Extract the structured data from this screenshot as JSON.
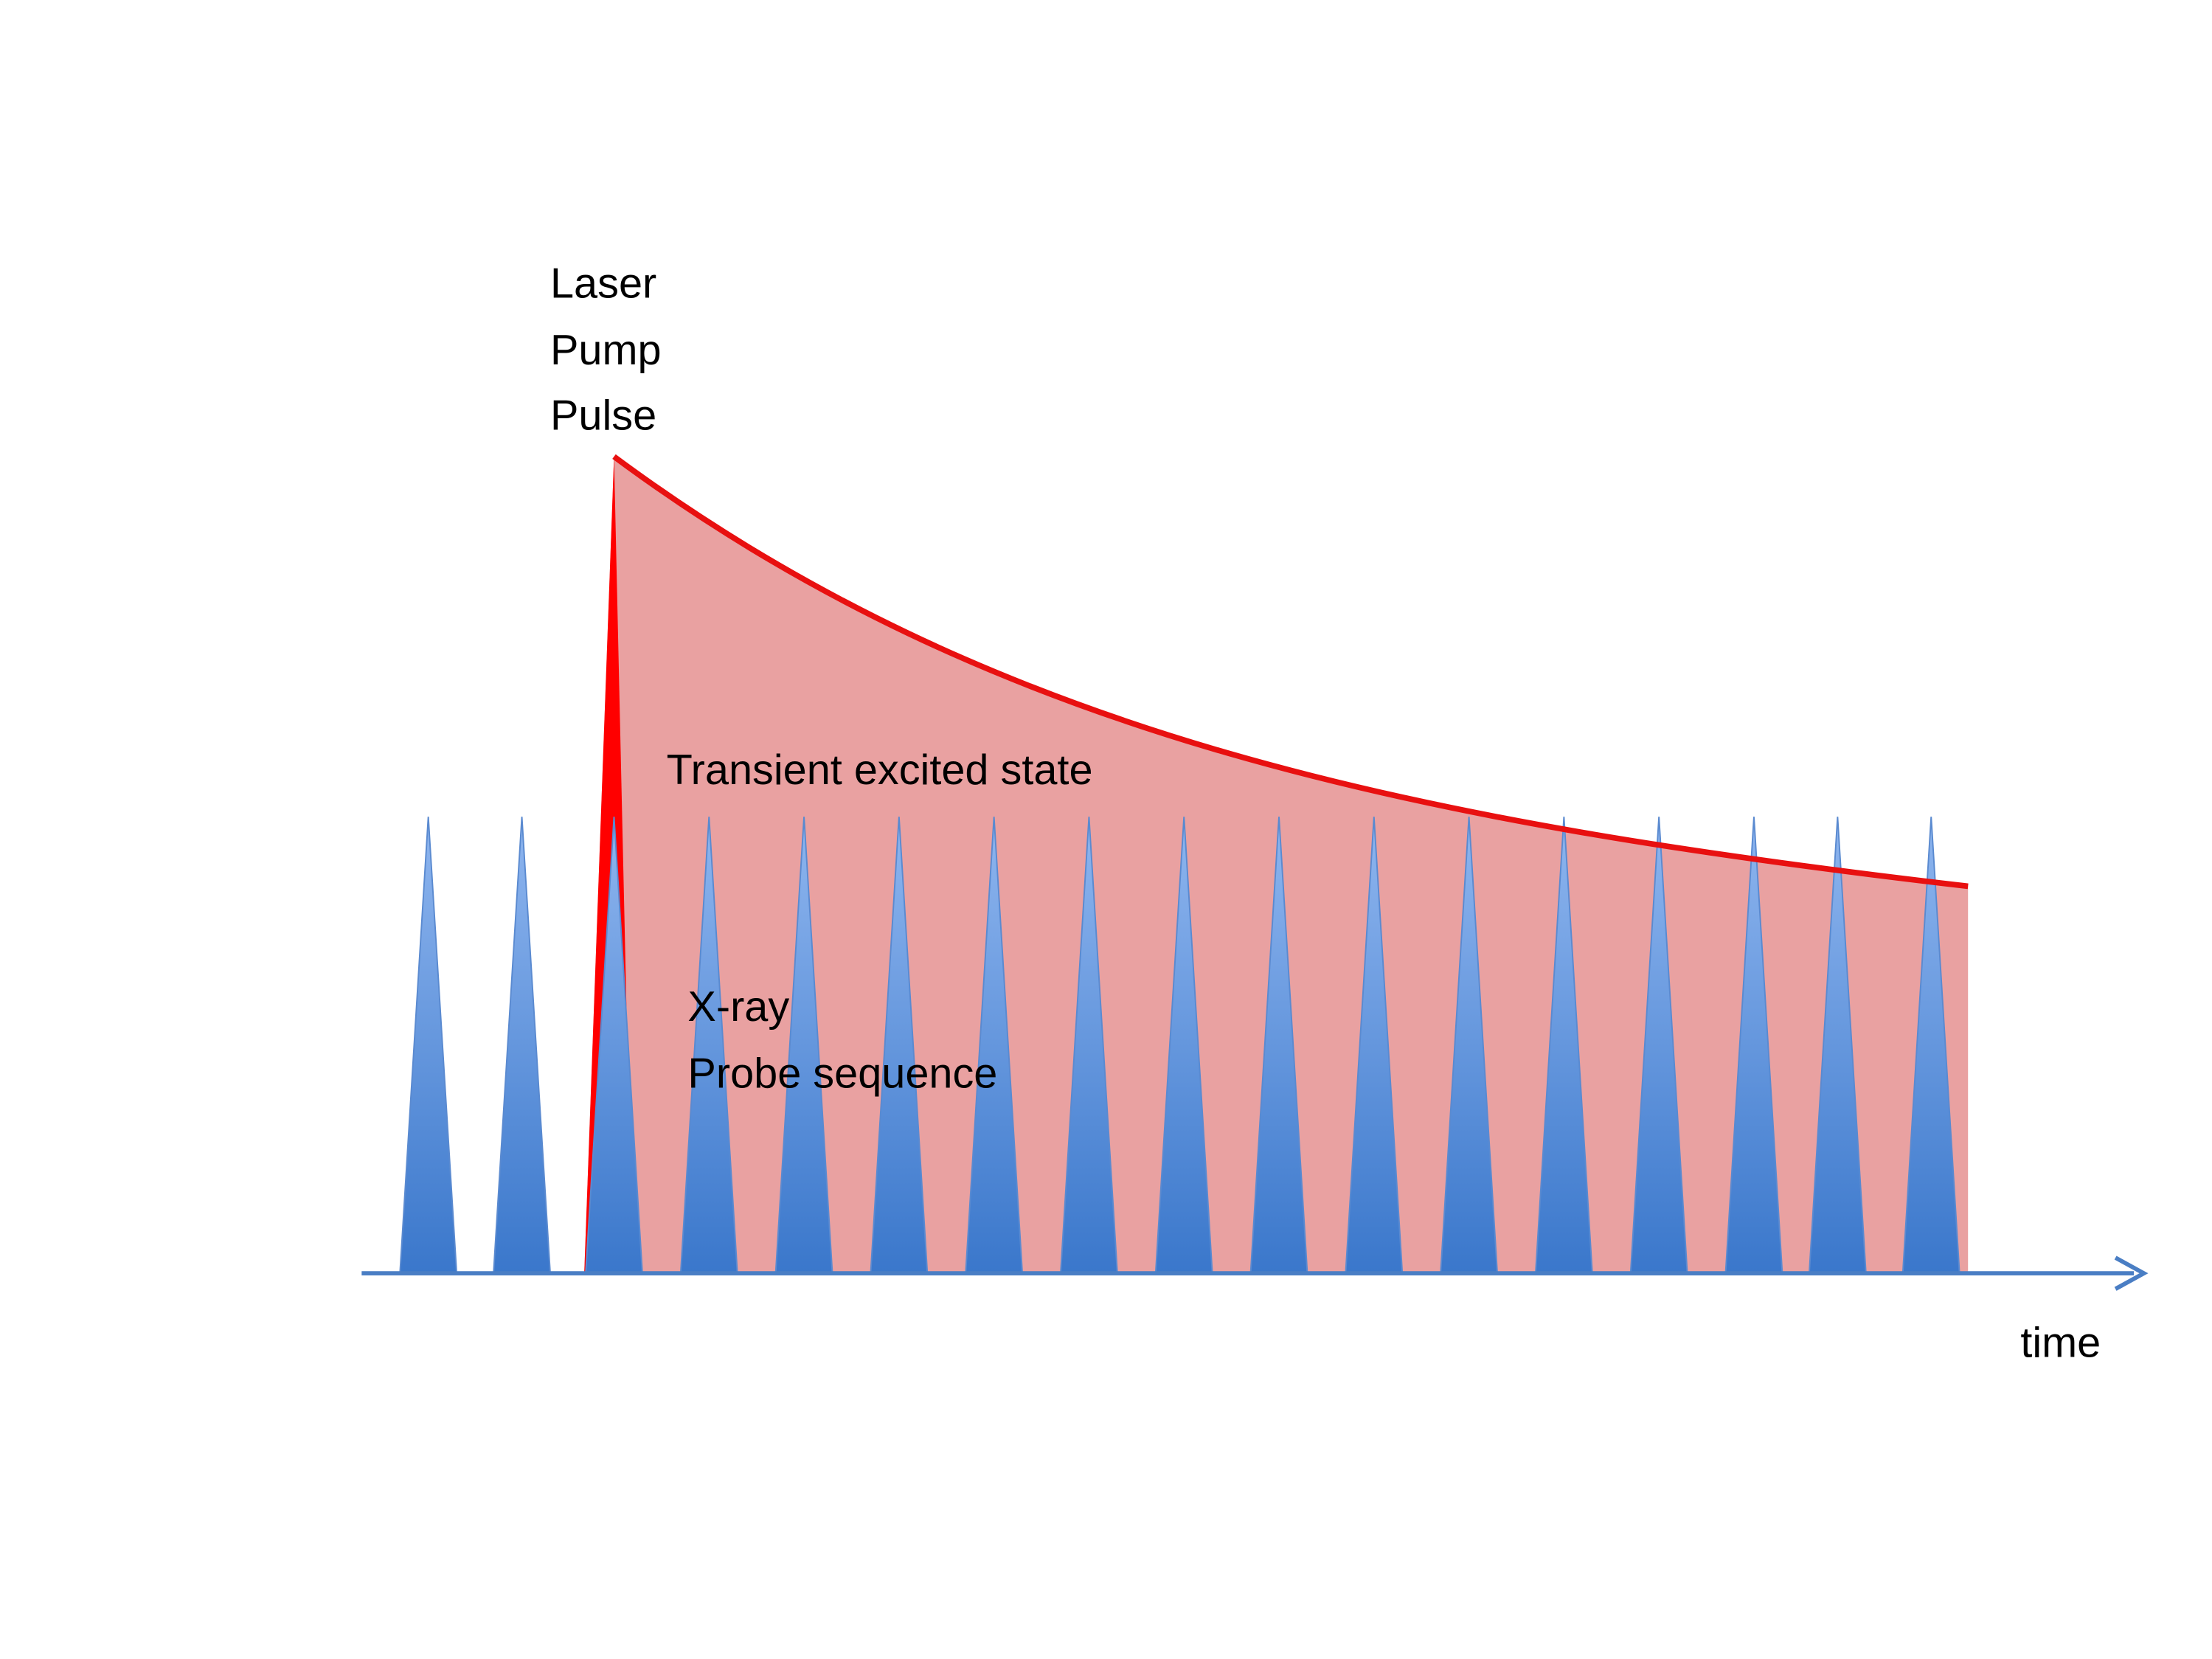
{
  "pump_label": {
    "lines": [
      "Laser",
      "Pump",
      "Pulse"
    ]
  },
  "state_label": "Transient excited state",
  "probe_label": {
    "lines": [
      "X-ray",
      "Probe sequence"
    ]
  },
  "axis_label": "time"
}
